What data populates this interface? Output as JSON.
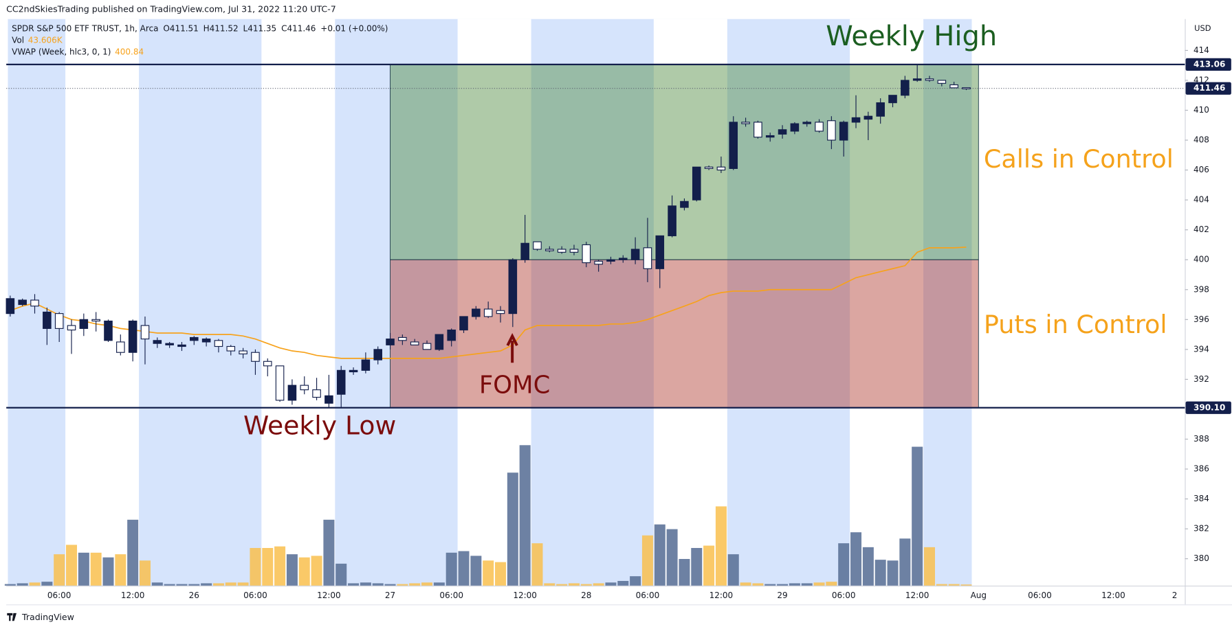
{
  "header": "CC2ndSkiesTrading published on TradingView.com, Jul 31, 2022 11:20 UTC-7",
  "footer": "TradingView",
  "chart_data": {
    "type": "candlestick",
    "legend": {
      "symbol": "SPDR S&P 500 ETF TRUST, 1h, Arca",
      "ohlc": [
        "O411.51",
        "H411.52",
        "L411.35",
        "C411.46"
      ],
      "change": "+0.01 (+0.00%)",
      "vol_label": "Vol",
      "vol_value": "43.606K",
      "vwap_label": "VWAP (Week, hlc3, 0, 1)",
      "vwap_value": "400.84"
    },
    "currency": "USD",
    "xticks": [
      "06:00",
      "12:00",
      "26",
      "06:00",
      "12:00",
      "27",
      "06:00",
      "12:00",
      "28",
      "06:00",
      "12:00",
      "29",
      "06:00",
      "12:00",
      "Aug",
      "06:00",
      "12:00",
      "2"
    ],
    "ylim": [
      378.2,
      416.1
    ],
    "yticks": [
      380,
      382,
      384,
      386,
      388,
      390,
      392,
      394,
      396,
      398,
      400,
      402,
      404,
      406,
      408,
      410,
      412,
      414
    ],
    "candles": {
      "up_color": "#131f4b",
      "down_color": "#ffffff",
      "open": [
        396.4,
        397.0,
        397.3,
        395.4,
        396.4,
        395.6,
        395.4,
        396.0,
        394.6,
        394.5,
        393.8,
        395.6,
        394.4,
        394.3,
        394.2,
        394.6,
        394.5,
        394.6,
        394.2,
        393.9,
        393.8,
        393.2,
        392.9,
        390.6,
        391.6,
        391.3,
        390.4,
        391.0,
        392.5,
        392.6,
        393.3,
        394.3,
        394.8,
        394.5,
        394.4,
        394.0,
        394.6,
        395.3,
        396.2,
        396.7,
        396.6,
        396.4,
        400.0,
        401.2,
        400.7,
        400.7,
        400.7,
        401.0,
        399.9,
        399.9,
        400.0,
        400.0,
        400.8,
        399.4,
        401.6,
        403.5,
        404.0,
        406.2,
        406.2,
        406.1,
        409.2,
        409.2,
        408.2,
        408.4,
        408.6,
        409.1,
        409.2,
        409.3,
        408.0,
        409.2,
        409.4,
        409.6,
        410.5,
        411.0,
        412.0,
        412.1,
        412.0,
        411.7,
        411.51
      ],
      "high": [
        397.6,
        397.4,
        397.7,
        396.8,
        396.5,
        396.0,
        396.4,
        396.5,
        396.0,
        395.0,
        396.0,
        396.2,
        394.8,
        394.5,
        394.5,
        394.9,
        394.8,
        394.7,
        394.3,
        394.1,
        394.0,
        393.4,
        392.9,
        392.0,
        392.2,
        392.1,
        392.3,
        392.9,
        392.8,
        393.8,
        394.2,
        395.1,
        395.0,
        394.7,
        394.6,
        395.0,
        395.4,
        396.2,
        396.9,
        397.2,
        396.9,
        400.1,
        403.0,
        401.2,
        400.9,
        400.9,
        401.0,
        401.2,
        400.0,
        400.2,
        400.3,
        401.5,
        402.8,
        401.6,
        404.3,
        404.1,
        406.2,
        406.3,
        406.9,
        409.6,
        409.5,
        409.3,
        408.5,
        409.0,
        409.2,
        409.3,
        409.4,
        409.6,
        409.3,
        411.0,
        409.9,
        410.8,
        411.0,
        412.3,
        413.06,
        412.3,
        412.0,
        411.9,
        411.52
      ],
      "low": [
        396.2,
        396.9,
        396.4,
        394.3,
        394.5,
        393.7,
        394.9,
        395.2,
        394.5,
        393.6,
        393.2,
        393.0,
        394.1,
        394.1,
        393.9,
        394.3,
        394.2,
        393.8,
        393.6,
        393.4,
        392.3,
        392.2,
        390.5,
        390.3,
        391.0,
        390.6,
        390.1,
        390.1,
        392.3,
        392.4,
        393.0,
        394.0,
        394.3,
        394.3,
        394.0,
        393.9,
        394.2,
        395.1,
        396.0,
        396.1,
        395.8,
        395.5,
        399.8,
        400.6,
        400.5,
        400.4,
        400.3,
        399.5,
        399.2,
        399.7,
        399.8,
        399.7,
        398.5,
        398.1,
        401.5,
        403.3,
        403.9,
        406.0,
        405.8,
        406.0,
        408.9,
        408.1,
        407.9,
        408.1,
        408.4,
        408.9,
        408.5,
        407.4,
        406.9,
        408.8,
        408.0,
        409.1,
        410.2,
        410.8,
        411.9,
        411.9,
        411.6,
        411.5,
        411.35
      ],
      "close": [
        397.4,
        397.3,
        396.9,
        396.5,
        395.4,
        395.3,
        396.0,
        395.9,
        395.9,
        393.8,
        395.9,
        394.7,
        394.6,
        394.4,
        394.3,
        394.8,
        394.7,
        394.2,
        393.9,
        393.7,
        393.2,
        392.9,
        390.6,
        391.6,
        391.3,
        390.8,
        390.9,
        392.6,
        392.6,
        393.3,
        394.0,
        394.7,
        394.6,
        394.3,
        394.0,
        395.0,
        395.3,
        396.2,
        396.7,
        396.2,
        396.4,
        400.0,
        401.1,
        400.7,
        400.6,
        400.5,
        400.5,
        399.8,
        399.7,
        400.0,
        400.1,
        400.7,
        399.4,
        401.6,
        403.6,
        403.9,
        406.2,
        406.1,
        406.0,
        409.2,
        409.1,
        408.2,
        408.3,
        408.7,
        409.1,
        409.2,
        408.6,
        408.0,
        409.2,
        409.5,
        409.6,
        410.5,
        411.0,
        412.0,
        412.1,
        412.0,
        411.8,
        411.5,
        411.46
      ]
    },
    "volume": {
      "up_color": "#5d7399",
      "down_color": "#f9c04e",
      "ylim": [
        0,
        21660000
      ],
      "values": [
        60000,
        90000,
        120000,
        150000,
        1200000,
        1560000,
        1260000,
        1260000,
        1080000,
        1200000,
        2520000,
        960000,
        120000,
        60000,
        60000,
        60000,
        90000,
        90000,
        120000,
        120000,
        1440000,
        1440000,
        1500000,
        1200000,
        1080000,
        1140000,
        2520000,
        840000,
        90000,
        120000,
        90000,
        60000,
        60000,
        90000,
        120000,
        120000,
        1260000,
        1320000,
        1140000,
        960000,
        900000,
        4320000,
        5370000,
        1620000,
        90000,
        60000,
        90000,
        60000,
        90000,
        120000,
        180000,
        360000,
        1920000,
        2340000,
        2160000,
        1020000,
        1440000,
        1530000,
        3030000,
        1200000,
        120000,
        90000,
        60000,
        60000,
        90000,
        90000,
        120000,
        150000,
        1620000,
        2040000,
        1470000,
        990000,
        960000,
        1800000,
        5310000,
        1470000,
        60000,
        60000,
        43606
      ]
    },
    "vwap": {
      "color": "#f7a21b",
      "values": [
        396.6,
        396.9,
        397.1,
        396.7,
        396.3,
        396.0,
        395.9,
        395.7,
        395.6,
        395.4,
        395.3,
        395.2,
        395.1,
        395.1,
        395.1,
        395.0,
        395.0,
        395.0,
        395.0,
        394.9,
        394.7,
        394.4,
        394.1,
        393.9,
        393.8,
        393.6,
        393.5,
        393.4,
        393.4,
        393.4,
        393.4,
        393.4,
        393.4,
        393.4,
        393.4,
        393.4,
        393.5,
        393.6,
        393.7,
        393.8,
        393.9,
        394.3,
        395.3,
        395.6,
        395.6,
        395.6,
        395.6,
        395.6,
        395.6,
        395.7,
        395.7,
        395.8,
        396.0,
        396.3,
        396.6,
        396.9,
        397.2,
        397.6,
        397.8,
        397.9,
        397.9,
        397.9,
        398.0,
        398.0,
        398.0,
        398.0,
        398.0,
        398.0,
        398.4,
        398.8,
        399.0,
        399.2,
        399.4,
        399.6,
        400.5,
        400.8,
        400.8,
        400.8,
        400.84
      ]
    },
    "zones": [
      {
        "from": 400.0,
        "to": 413.06,
        "color": "#4e8a3e"
      },
      {
        "from": 390.1,
        "to": 400.0,
        "color": "#b03a2e"
      }
    ],
    "price_lines": [
      413.06,
      {
        "value": 390.1,
        "label": "390.10"
      }
    ],
    "last_price": 411.46,
    "annotations": [
      "Weekly High",
      "Calls in Control",
      "Puts in Control",
      "FOMC",
      "Weekly Low"
    ]
  }
}
